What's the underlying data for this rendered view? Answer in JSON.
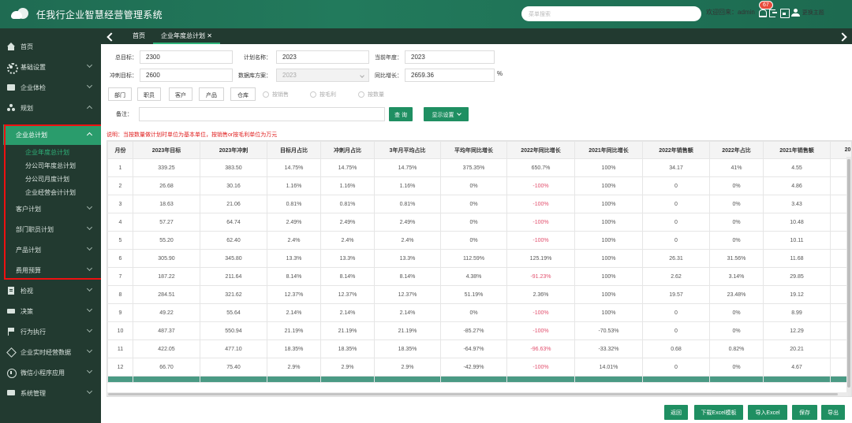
{
  "app": {
    "title": "任我行企业智慧经营管理系统"
  },
  "topbar": {
    "search_placeholder": "菜单搜索",
    "welcome": "欢迎回来：admin",
    "notification_count": "67",
    "theme_label": "更换主题"
  },
  "sidebar": {
    "items": [
      {
        "label": "首页",
        "icon": "home-icon"
      },
      {
        "label": "基础设置",
        "icon": "gear-icon"
      },
      {
        "label": "企业体检",
        "icon": "box-icon"
      },
      {
        "label": "规划",
        "icon": "cluster-icon"
      }
    ],
    "plan_group": {
      "active_label": "企业总计划",
      "sub_items": [
        "企业年度总计划",
        "分公司年度总计划",
        "分公司月度计划",
        "企业经营会计计划"
      ],
      "other_items": [
        "客户计划",
        "部门职员计划",
        "产品计划",
        "费用预算"
      ]
    },
    "items_after": [
      {
        "label": "检视",
        "icon": "doc-icon"
      },
      {
        "label": "决策",
        "icon": "card-icon"
      },
      {
        "label": "行为执行",
        "icon": "flag-icon"
      },
      {
        "label": "企业实时经营数据",
        "icon": "layers-icon"
      },
      {
        "label": "微信小程序应用",
        "icon": "circle-icon"
      },
      {
        "label": "系统管理",
        "icon": "monitor-icon"
      }
    ]
  },
  "tabs": {
    "home": "首页",
    "active": "企业年度总计划 ✕"
  },
  "form": {
    "total_target_label": "总目标：",
    "total_target": "2300",
    "plan_name_label": "计划名称：",
    "plan_name": "2023",
    "current_year_label": "当前年度：",
    "current_year": "2023",
    "sprint_target_label": "冲刺目标：",
    "sprint_target": "2600",
    "data_scheme_label": "数据库方案：",
    "data_scheme": "2023",
    "yoy_growth_label": "同比增长：",
    "yoy_growth": "2659.36",
    "percent": "%",
    "dim_buttons": [
      "部门",
      "职员",
      "客户",
      "产品",
      "仓库"
    ],
    "radios": [
      "按销售",
      "按毛利",
      "按数量"
    ],
    "remark_label": "备注：",
    "query_button": "查 询",
    "display_button": "显示设置"
  },
  "note": "说明：当按数量做计划时单位为基本单位，按销售or按毛利单位为万元",
  "table": {
    "headers": [
      "月份",
      "2023年目标",
      "2023年冲刺",
      "目标月占比",
      "冲刺月占比",
      "3年月平均占比",
      "平均年同比增长",
      "2022年同比增长",
      "2021年同比增长",
      "2022年销售额",
      "2022年占比",
      "2021年销售额",
      "20"
    ],
    "rows": [
      [
        "1",
        "339.25",
        "383.50",
        "14.75%",
        "14.75%",
        "14.75%",
        "375.35%",
        "650.7%",
        "100%",
        "34.17",
        "41%",
        "4.55",
        ""
      ],
      [
        "2",
        "26.68",
        "30.16",
        "1.16%",
        "1.16%",
        "1.16%",
        "0%",
        "-100%",
        "100%",
        "0",
        "0%",
        "4.86",
        ""
      ],
      [
        "3",
        "18.63",
        "21.06",
        "0.81%",
        "0.81%",
        "0.81%",
        "0%",
        "-100%",
        "100%",
        "0",
        "0%",
        "3.43",
        ""
      ],
      [
        "4",
        "57.27",
        "64.74",
        "2.49%",
        "2.49%",
        "2.49%",
        "0%",
        "-100%",
        "100%",
        "0",
        "0%",
        "10.48",
        ""
      ],
      [
        "5",
        "55.20",
        "62.40",
        "2.4%",
        "2.4%",
        "2.4%",
        "0%",
        "-100%",
        "100%",
        "0",
        "0%",
        "10.11",
        ""
      ],
      [
        "6",
        "305.90",
        "345.80",
        "13.3%",
        "13.3%",
        "13.3%",
        "112.59%",
        "125.19%",
        "100%",
        "26.31",
        "31.56%",
        "11.68",
        ""
      ],
      [
        "7",
        "187.22",
        "211.64",
        "8.14%",
        "8.14%",
        "8.14%",
        "4.38%",
        "-91.23%",
        "100%",
        "2.62",
        "3.14%",
        "29.85",
        ""
      ],
      [
        "8",
        "284.51",
        "321.62",
        "12.37%",
        "12.37%",
        "12.37%",
        "51.19%",
        "2.36%",
        "100%",
        "19.57",
        "23.48%",
        "19.12",
        ""
      ],
      [
        "9",
        "49.22",
        "55.64",
        "2.14%",
        "2.14%",
        "2.14%",
        "0%",
        "-100%",
        "100%",
        "0",
        "0%",
        "8.99",
        ""
      ],
      [
        "10",
        "487.37",
        "550.94",
        "21.19%",
        "21.19%",
        "21.19%",
        "-85.27%",
        "-100%",
        "-70.53%",
        "0",
        "0%",
        "12.29",
        ""
      ],
      [
        "11",
        "422.05",
        "477.10",
        "18.35%",
        "18.35%",
        "18.35%",
        "-64.97%",
        "-96.63%",
        "-33.32%",
        "0.68",
        "0.82%",
        "20.21",
        ""
      ],
      [
        "12",
        "66.70",
        "75.40",
        "2.9%",
        "2.9%",
        "2.9%",
        "-42.99%",
        "-100%",
        "14.01%",
        "0",
        "0%",
        "4.67",
        ""
      ]
    ]
  },
  "actions": [
    "返回",
    "下载Excel模板",
    "导入Excel",
    "保存",
    "导出"
  ],
  "colors": {
    "primary": "#1f8f62",
    "sidebar": "#223a30",
    "negative": "#e2506e",
    "highlight_box": "#e11111"
  }
}
